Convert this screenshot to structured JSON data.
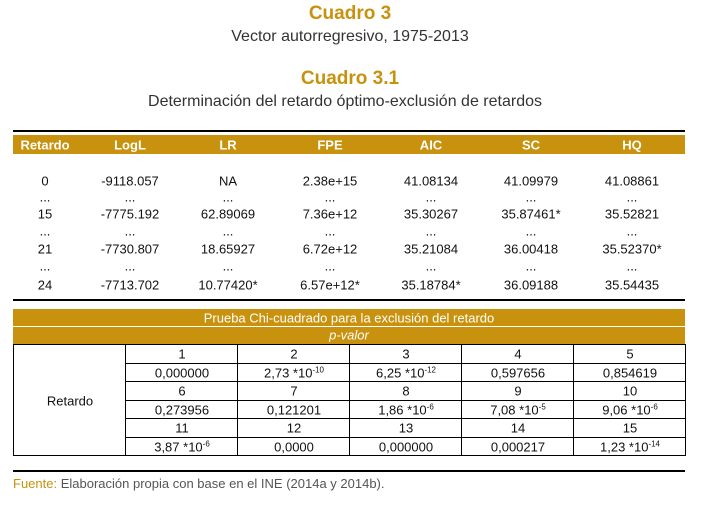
{
  "header": {
    "title": "Cuadro 3",
    "subtitle": "Vector autorregresivo, 1975-2013"
  },
  "table": {
    "title": "Cuadro 3.1",
    "subtitle": "Determinación del retardo óptimo-exclusión de retardos",
    "columns": [
      "Retardo",
      "LogL",
      "LR",
      "FPE",
      "AIC",
      "SC",
      "HQ"
    ],
    "rows": [
      [
        "0",
        "-9118.057",
        "NA",
        "2.38e+15",
        "41.08134",
        "41.09979",
        "41.08861"
      ],
      [
        "...",
        "...",
        "...",
        "...",
        "...",
        "...",
        "..."
      ],
      [
        "15",
        "-7775.192",
        "62.89069",
        "7.36e+12",
        "35.30267",
        "35.87461*",
        "35.52821"
      ],
      [
        "...",
        "...",
        "...",
        "...",
        "...",
        "...",
        "..."
      ],
      [
        "21",
        "-7730.807",
        "18.65927",
        "6.72e+12",
        "35.21084",
        "36.00418",
        "35.52370*"
      ],
      [
        "...",
        "...",
        "...",
        "...",
        "...",
        "...",
        "..."
      ],
      [
        "24",
        "-7713.702",
        "10.77420*",
        "6.57e+12*",
        "35.18784*",
        "36.09188",
        "35.54435"
      ]
    ]
  },
  "chi": {
    "title": "Prueba Chi-cuadrado  para la exclusión del retardo",
    "subtitle": "p-valor",
    "row_label": "Retardo",
    "cells": [
      {
        "lag": "1",
        "p": "0,000000"
      },
      {
        "lag": "2",
        "p": {
          "base": "2,73 *10",
          "exp": "-10"
        }
      },
      {
        "lag": "3",
        "p": {
          "base": "6,25 *10",
          "exp": "-12"
        }
      },
      {
        "lag": "4",
        "p": "0,597656"
      },
      {
        "lag": "5",
        "p": "0,854619"
      },
      {
        "lag": "6",
        "p": "0,273956"
      },
      {
        "lag": "7",
        "p": "0,121201"
      },
      {
        "lag": "8",
        "p": {
          "base": "1,86 *10",
          "exp": "-6"
        }
      },
      {
        "lag": "9",
        "p": {
          "base": "7,08 *10",
          "exp": "-5"
        }
      },
      {
        "lag": "10",
        "p": {
          "base": "9,06 *10",
          "exp": "-6"
        }
      },
      {
        "lag": "11",
        "p": {
          "base": "3,87 *10",
          "exp": "-6"
        }
      },
      {
        "lag": "12",
        "p": "0,0000"
      },
      {
        "lag": "13",
        "p": "0,000000"
      },
      {
        "lag": "14",
        "p": "0,000217"
      },
      {
        "lag": "15",
        "p": {
          "base": "1,23 *10",
          "exp": "-14"
        }
      }
    ]
  },
  "footer": {
    "label": "Fuente:",
    "text": "Elaboración propia con base en el INE (2014a y 2014b)."
  }
}
